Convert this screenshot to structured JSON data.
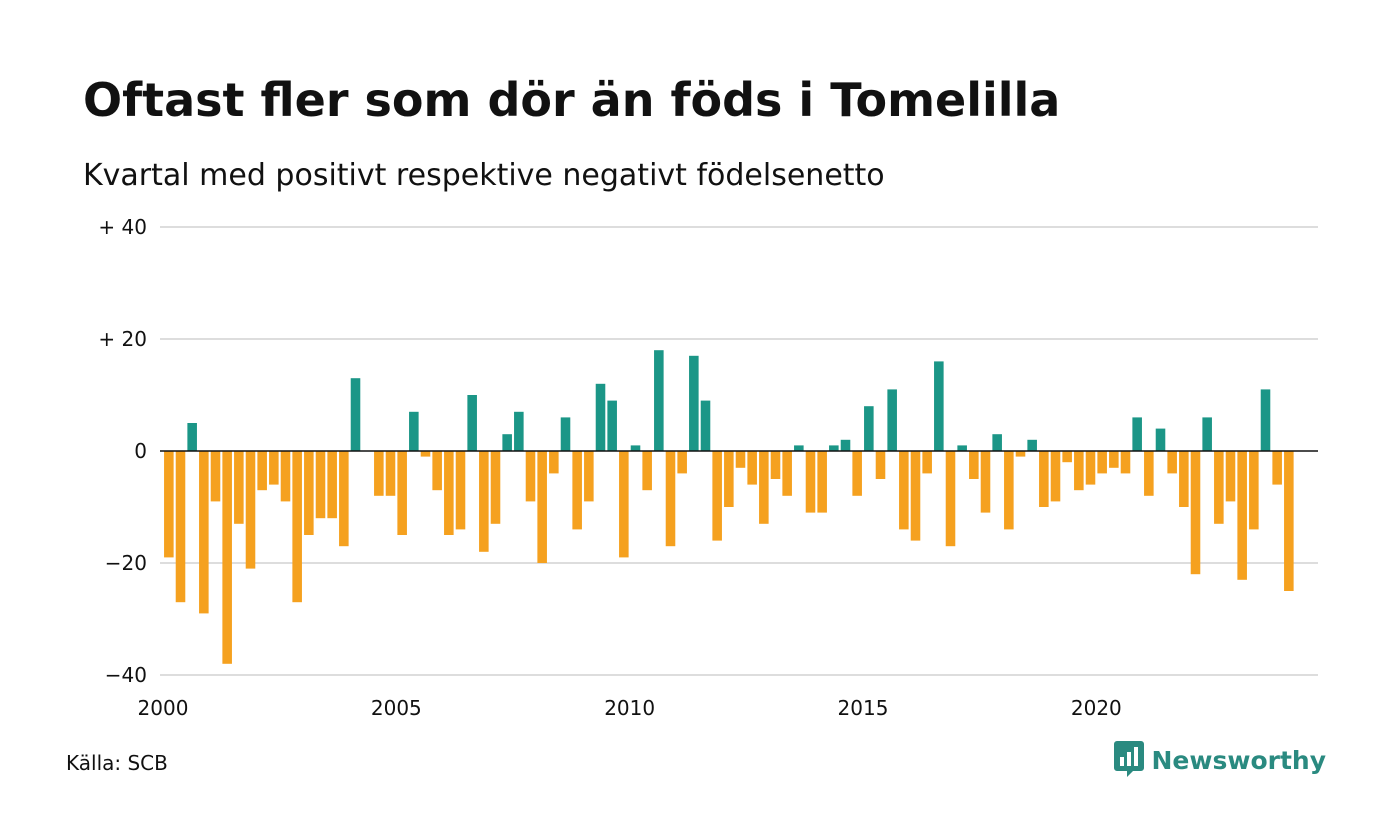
{
  "header": {
    "title": "Oftast fler som dör än föds i Tomelilla",
    "subtitle": "Kvartal med positivt respektive negativt födelsenetto"
  },
  "footer": {
    "source": "Källa: SCB",
    "brand": "Newsworthy",
    "brand_icon": "bar-chart-speech-bubble-icon"
  },
  "colors": {
    "positive": "#1b9687",
    "negative": "#f5a11f",
    "grid": "#dddddd",
    "brand": "#2a8a80"
  },
  "chart_data": {
    "type": "bar",
    "title": "Oftast fler som dör än föds i Tomelilla",
    "subtitle": "Kvartal med positivt respektive negativt födelsenetto",
    "xlabel": "",
    "ylabel": "",
    "ylim": [
      -40,
      40
    ],
    "xlim": [
      2000,
      2024.75
    ],
    "grid": true,
    "legend": "none",
    "y_ticks": [
      {
        "value": 40,
        "label": "+ 40"
      },
      {
        "value": 20,
        "label": "+ 20"
      },
      {
        "value": 0,
        "label": "0"
      },
      {
        "value": -20,
        "label": "−20"
      },
      {
        "value": -40,
        "label": "−40"
      }
    ],
    "x_ticks": [
      {
        "value": 2000,
        "label": "2000"
      },
      {
        "value": 2005,
        "label": "2005"
      },
      {
        "value": 2010,
        "label": "2010"
      },
      {
        "value": 2015,
        "label": "2015"
      },
      {
        "value": 2020,
        "label": "2020"
      }
    ],
    "start_year": 2000,
    "periods_per_year": 4,
    "values": [
      -19,
      -27,
      5,
      -29,
      -9,
      -38,
      -13,
      -21,
      -7,
      -6,
      -9,
      -27,
      -15,
      -12,
      -12,
      -17,
      13,
      0,
      -8,
      -8,
      -15,
      7,
      -1,
      -7,
      -15,
      -14,
      10,
      -18,
      -13,
      3,
      7,
      -9,
      -20,
      -4,
      6,
      -14,
      -9,
      12,
      9,
      -19,
      1,
      -7,
      18,
      -17,
      -4,
      17,
      9,
      -16,
      -10,
      -3,
      -6,
      -13,
      -5,
      -8,
      1,
      -11,
      -11,
      1,
      2,
      -8,
      8,
      -5,
      11,
      -14,
      -16,
      -4,
      16,
      -17,
      1,
      -5,
      -11,
      3,
      -14,
      -1,
      2,
      -10,
      -9,
      -2,
      -7,
      -6,
      -4,
      -3,
      -4,
      6,
      -8,
      4,
      -4,
      -10,
      -22,
      6,
      -13,
      -9,
      -23,
      -14,
      11,
      -6,
      -25
    ]
  }
}
